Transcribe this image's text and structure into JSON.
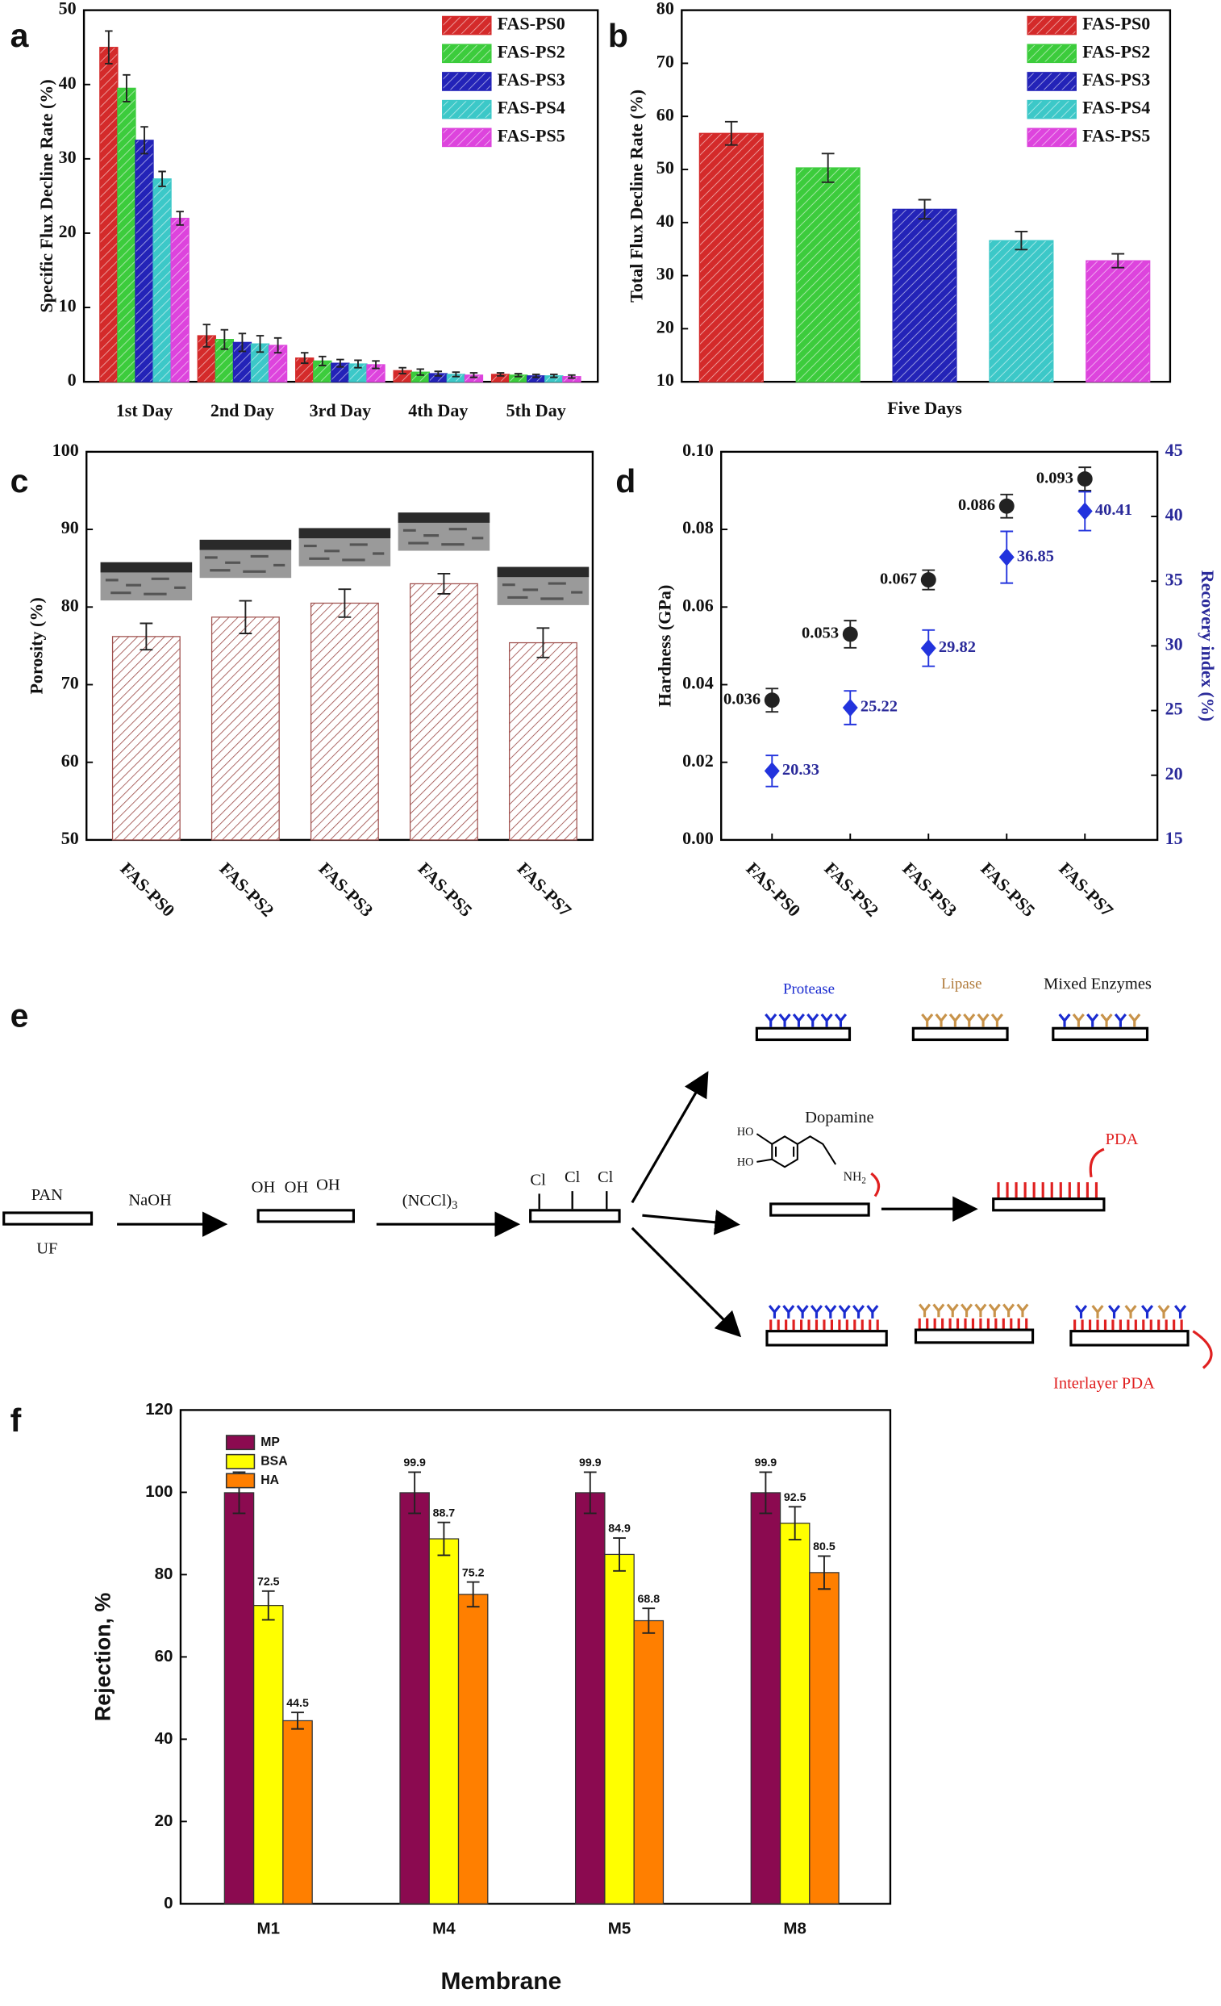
{
  "chart_data": [
    {
      "panel": "a",
      "type": "bar",
      "categories": [
        "1st Day",
        "2nd Day",
        "3rd Day",
        "4th Day",
        "5th Day"
      ],
      "y_label": "Specific Flux Decline Rate (%)",
      "ylim": [
        0,
        50
      ],
      "yticks": [
        0,
        10,
        20,
        30,
        40,
        50
      ],
      "legend": "upper right",
      "series": [
        {
          "name": "FAS-PS0",
          "color": "#d42a2a",
          "values": [
            45,
            6.2,
            3.2,
            1.5,
            1.0
          ],
          "errors": [
            2.2,
            1.5,
            0.7,
            0.4,
            0.2
          ]
        },
        {
          "name": "FAS-PS2",
          "color": "#3ccc3c",
          "values": [
            39.5,
            5.7,
            2.8,
            1.3,
            0.9
          ],
          "errors": [
            1.8,
            1.3,
            0.6,
            0.4,
            0.2
          ]
        },
        {
          "name": "FAS-PS3",
          "color": "#2323b8",
          "values": [
            32.5,
            5.3,
            2.5,
            1.1,
            0.8
          ],
          "errors": [
            1.8,
            1.2,
            0.5,
            0.3,
            0.2
          ]
        },
        {
          "name": "FAS-PS4",
          "color": "#3cc8c8",
          "values": [
            27.3,
            5.1,
            2.4,
            1.0,
            0.8
          ],
          "errors": [
            1.0,
            1.1,
            0.5,
            0.3,
            0.2
          ]
        },
        {
          "name": "FAS-PS5",
          "color": "#dd44dd",
          "values": [
            22,
            4.9,
            2.3,
            0.9,
            0.7
          ],
          "errors": [
            0.9,
            1.0,
            0.5,
            0.3,
            0.2
          ]
        }
      ]
    },
    {
      "panel": "b",
      "type": "bar",
      "categories": [
        "Five Days"
      ],
      "y_label": "Total Flux Decline Rate (%)",
      "ylim": [
        10,
        80
      ],
      "yticks": [
        10,
        20,
        30,
        40,
        50,
        60,
        70,
        80
      ],
      "legend": "upper right",
      "series": [
        {
          "name": "FAS-PS0",
          "color": "#d42a2a",
          "values": [
            56.8
          ],
          "errors": [
            2.2
          ]
        },
        {
          "name": "FAS-PS2",
          "color": "#3ccc3c",
          "values": [
            50.3
          ],
          "errors": [
            2.7
          ]
        },
        {
          "name": "FAS-PS3",
          "color": "#2323b8",
          "values": [
            42.5
          ],
          "errors": [
            1.8
          ]
        },
        {
          "name": "FAS-PS4",
          "color": "#3cc8c8",
          "values": [
            36.6
          ],
          "errors": [
            1.7
          ]
        },
        {
          "name": "FAS-PS5",
          "color": "#dd44dd",
          "values": [
            32.8
          ],
          "errors": [
            1.3
          ]
        }
      ]
    },
    {
      "panel": "c",
      "type": "bar",
      "categories": [
        "FAS-PS0",
        "FAS-PS2",
        "FAS-PS3",
        "FAS-PS5",
        "FAS-PS7"
      ],
      "y_label": "Porosity (%)",
      "ylim": [
        50,
        100
      ],
      "yticks": [
        50,
        60,
        70,
        80,
        90,
        100
      ],
      "series": [
        {
          "color": "#a0524f",
          "values": [
            76.2,
            78.7,
            80.5,
            83.0,
            75.4
          ],
          "errors": [
            1.7,
            2.1,
            1.8,
            1.3,
            1.9
          ]
        }
      ]
    },
    {
      "panel": "d",
      "type": "scatter",
      "categories": [
        "FAS-PS0",
        "FAS-PS2",
        "FAS-PS3",
        "FAS-PS5",
        "FAS-PS7"
      ],
      "y_label": "Hardness (GPa)",
      "y2_label": "Recovery index (%)",
      "ylim": [
        0,
        0.1
      ],
      "yticks": [
        {
          "value": 0,
          "label": "0.00"
        },
        0.02,
        0.04,
        0.06,
        0.08,
        {
          "value": 0.1,
          "label": "0.10"
        }
      ],
      "y2lim": [
        15,
        45
      ],
      "y2ticks": [
        15,
        20,
        25,
        30,
        35,
        40,
        45
      ],
      "series": [
        {
          "color": "#222222",
          "marker": "circle",
          "values": [
            0.036,
            0.053,
            0.067,
            0.086,
            0.093
          ],
          "errors": [
            0.003,
            0.0035,
            0.0025,
            0.003,
            0.003
          ]
        },
        {
          "color": "#2233dd",
          "marker": "diamond",
          "axis": "y2",
          "values": [
            20.33,
            25.22,
            29.82,
            36.85,
            40.41
          ],
          "errors": [
            1.2,
            1.3,
            1.4,
            2.0,
            1.5
          ]
        }
      ]
    },
    {
      "panel": "f",
      "type": "bar",
      "categories": [
        "M1",
        "M4",
        "M5",
        "M8"
      ],
      "y_label": "Rejection, %",
      "x_label": "Membrane",
      "ylim": [
        0,
        120
      ],
      "yticks": [
        0,
        20,
        40,
        60,
        80,
        100,
        120
      ],
      "legend": "upper left",
      "series": [
        {
          "name": "MP",
          "color": "#8b0a50",
          "values": [
            99.9,
            99.9,
            99.9,
            99.9
          ],
          "errors": [
            5,
            5,
            5,
            5
          ]
        },
        {
          "name": "BSA",
          "color": "#ffff00",
          "values": [
            72.5,
            88.7,
            84.9,
            92.5
          ],
          "errors": [
            3.5,
            4,
            4,
            4
          ]
        },
        {
          "name": "HA",
          "color": "#ff7f00",
          "values": [
            44.5,
            75.2,
            68.8,
            80.5
          ],
          "errors": [
            2,
            3,
            3,
            4
          ]
        }
      ]
    }
  ],
  "diagram": {
    "panel": "e",
    "pan": "PAN",
    "uf": "UF",
    "naoh": "NaOH",
    "oh": [
      "OH",
      "OH",
      "OH"
    ],
    "reagent": "(NCCl)",
    "reagent_sub": "3",
    "cl": [
      "Cl",
      "Cl",
      "Cl"
    ],
    "protease": "Protease",
    "lipase": "Lipase",
    "mixed": "Mixed Enzymes",
    "dopamine": "Dopamine",
    "ho": [
      "HO",
      "HO"
    ],
    "nh": "NH",
    "nh_sub": "2",
    "pda": "PDA",
    "interlayer": "Interlayer PDA"
  }
}
